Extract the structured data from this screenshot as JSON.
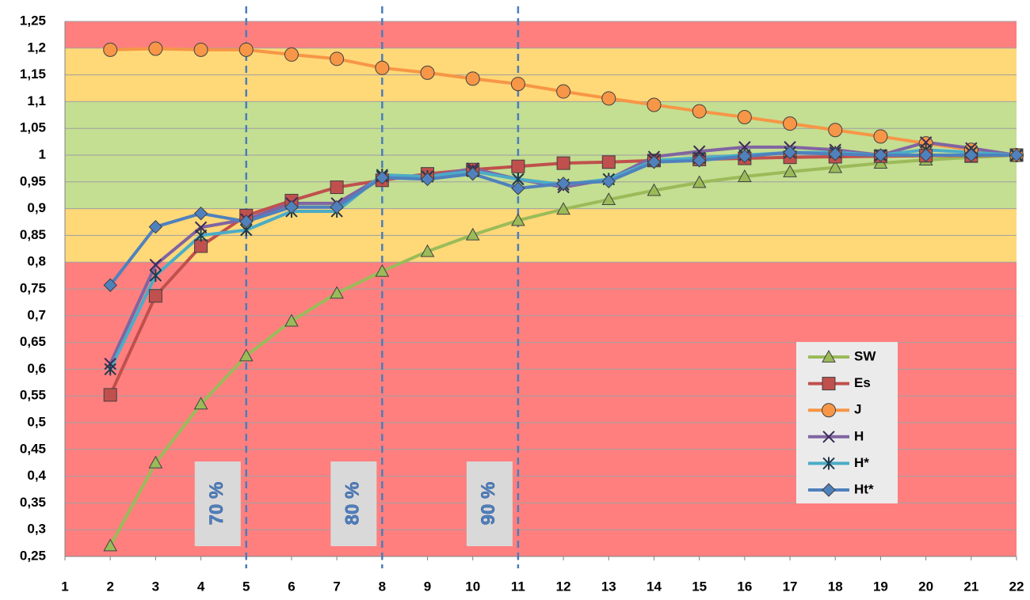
{
  "chart_data": {
    "type": "line",
    "x": [
      2,
      3,
      4,
      5,
      6,
      7,
      8,
      9,
      10,
      11,
      12,
      13,
      14,
      15,
      16,
      17,
      18,
      19,
      20,
      21,
      22
    ],
    "series": [
      {
        "name": "SW",
        "color": "#9bbb59",
        "marker": "triangle",
        "values": [
          0.27,
          0.425,
          0.535,
          0.625,
          0.69,
          0.742,
          0.783,
          0.82,
          0.851,
          0.878,
          0.899,
          0.917,
          0.934,
          0.949,
          0.96,
          0.969,
          0.977,
          0.985,
          0.991,
          0.996,
          1.0
        ]
      },
      {
        "name": "Es",
        "color": "#c0504d",
        "marker": "square",
        "values": [
          0.552,
          0.737,
          0.83,
          0.887,
          0.915,
          0.94,
          0.953,
          0.965,
          0.973,
          0.979,
          0.985,
          0.987,
          0.99,
          0.992,
          0.994,
          0.996,
          0.997,
          0.998,
          0.999,
          0.999,
          1.0
        ]
      },
      {
        "name": "J",
        "color": "#f79646",
        "marker": "circle",
        "values": [
          1.197,
          1.199,
          1.197,
          1.197,
          1.188,
          1.18,
          1.163,
          1.154,
          1.143,
          1.133,
          1.119,
          1.106,
          1.094,
          1.082,
          1.071,
          1.059,
          1.047,
          1.035,
          1.022,
          1.01,
          1.0
        ]
      },
      {
        "name": "H",
        "color": "#8064a2",
        "marker": "x",
        "values": [
          0.61,
          0.795,
          0.865,
          0.88,
          0.91,
          0.91,
          0.96,
          0.96,
          0.975,
          0.955,
          0.94,
          0.955,
          0.997,
          1.007,
          1.015,
          1.015,
          1.01,
          1.0,
          1.024,
          1.013,
          1.0
        ]
      },
      {
        "name": "H*",
        "color": "#4bacc6",
        "marker": "star",
        "values": [
          0.6,
          0.775,
          0.85,
          0.86,
          0.895,
          0.895,
          0.963,
          0.96,
          0.97,
          0.955,
          0.945,
          0.955,
          0.99,
          0.995,
          1.0,
          1.005,
          1.005,
          1.0,
          1.01,
          1.005,
          1.0
        ]
      },
      {
        "name": "Ht*",
        "color": "#4f81bd",
        "marker": "diamond",
        "values": [
          0.757,
          0.866,
          0.891,
          0.876,
          0.903,
          0.903,
          0.958,
          0.955,
          0.965,
          0.938,
          0.947,
          0.951,
          0.987,
          0.99,
          0.998,
          1.005,
          1.002,
          1.0,
          1.0,
          1.0,
          1.0
        ]
      }
    ],
    "xlim": [
      1,
      22
    ],
    "xticks": [
      1,
      2,
      3,
      4,
      5,
      6,
      7,
      8,
      9,
      10,
      11,
      12,
      13,
      14,
      15,
      16,
      17,
      18,
      19,
      20,
      21,
      22
    ],
    "ylim": [
      0.25,
      1.25
    ],
    "yticks": [
      {
        "value": 0.25,
        "label": "0,25"
      },
      {
        "value": 0.3,
        "label": "0,3"
      },
      {
        "value": 0.35,
        "label": "0,35"
      },
      {
        "value": 0.4,
        "label": "0,4"
      },
      {
        "value": 0.45,
        "label": "0,45"
      },
      {
        "value": 0.5,
        "label": "0,5"
      },
      {
        "value": 0.55,
        "label": "0,55"
      },
      {
        "value": 0.6,
        "label": "0,6"
      },
      {
        "value": 0.65,
        "label": "0,65"
      },
      {
        "value": 0.7,
        "label": "0,7"
      },
      {
        "value": 0.75,
        "label": "0,75"
      },
      {
        "value": 0.8,
        "label": "0,8"
      },
      {
        "value": 0.85,
        "label": "0,85"
      },
      {
        "value": 0.9,
        "label": "0,9"
      },
      {
        "value": 0.95,
        "label": "0,95"
      },
      {
        "value": 1,
        "label": "1"
      },
      {
        "value": 1.05,
        "label": "1,05"
      },
      {
        "value": 1.1,
        "label": "1,1"
      },
      {
        "value": 1.15,
        "label": "1,15"
      },
      {
        "value": 1.2,
        "label": "1,2"
      },
      {
        "value": 1.25,
        "label": "1,25"
      }
    ],
    "bands": [
      {
        "from": 0.25,
        "to": 0.8,
        "color": "#ff7f7f"
      },
      {
        "from": 0.8,
        "to": 0.9,
        "color": "#ffd878"
      },
      {
        "from": 0.9,
        "to": 1.1,
        "color": "#c4de92"
      },
      {
        "from": 1.1,
        "to": 1.2,
        "color": "#ffd878"
      },
      {
        "from": 1.2,
        "to": 1.25,
        "color": "#ff7f7f"
      }
    ],
    "vlines": [
      {
        "x": 5,
        "label": "70 %"
      },
      {
        "x": 8,
        "label": "80 %"
      },
      {
        "x": 11,
        "label": "90 %"
      }
    ],
    "grid": true,
    "legend": "lower right"
  }
}
